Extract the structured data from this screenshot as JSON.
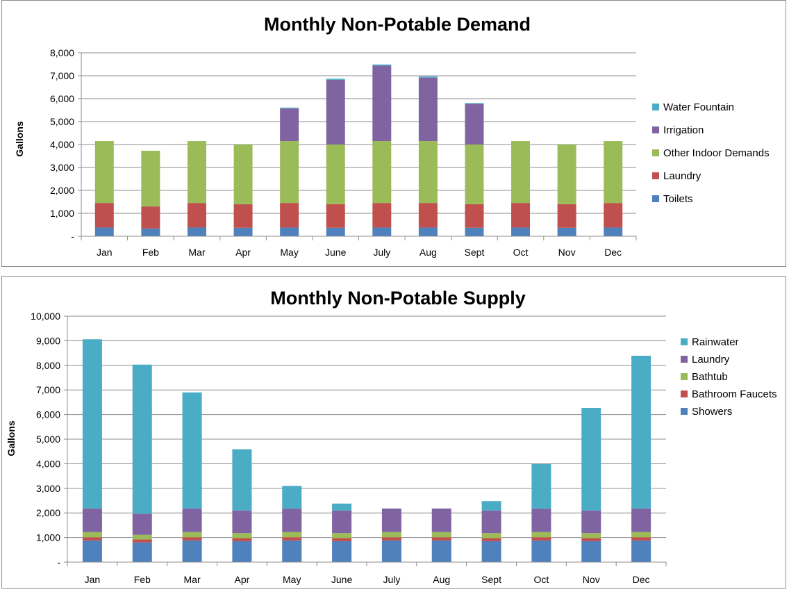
{
  "chart_data": [
    {
      "type": "bar",
      "stacked": true,
      "title": "Monthly Non-Potable Demand",
      "xlabel": "",
      "ylabel": "Gallons",
      "ylim": [
        0,
        8000
      ],
      "ytick_step": 1000,
      "ytick_labels": [
        "-",
        "1,000",
        "2,000",
        "3,000",
        "4,000",
        "5,000",
        "6,000",
        "7,000",
        "8,000"
      ],
      "grid": true,
      "legend_position": "right",
      "categories": [
        "Jan",
        "Feb",
        "Mar",
        "Apr",
        "May",
        "June",
        "July",
        "Aug",
        "Sept",
        "Oct",
        "Nov",
        "Dec"
      ],
      "series": [
        {
          "name": "Toilets",
          "color": "#4f81bd",
          "values": [
            380,
            340,
            380,
            370,
            380,
            370,
            380,
            380,
            370,
            380,
            370,
            380
          ]
        },
        {
          "name": "Laundry",
          "color": "#c0504d",
          "values": [
            1070,
            960,
            1070,
            1030,
            1070,
            1030,
            1070,
            1070,
            1030,
            1070,
            1030,
            1070
          ]
        },
        {
          "name": "Other Indoor Demands",
          "color": "#9bbb59",
          "values": [
            2700,
            2430,
            2700,
            2600,
            2700,
            2600,
            2700,
            2700,
            2600,
            2700,
            2600,
            2700
          ]
        },
        {
          "name": "Irrigation",
          "color": "#8064a2",
          "values": [
            0,
            0,
            0,
            0,
            1420,
            2820,
            3290,
            2770,
            1770,
            0,
            0,
            0
          ]
        },
        {
          "name": "Water Fountain",
          "color": "#4bacc6",
          "values": [
            0,
            0,
            0,
            0,
            40,
            50,
            50,
            50,
            40,
            0,
            0,
            0
          ]
        }
      ],
      "legend_order": [
        "Water Fountain",
        "Irrigation",
        "Other Indoor Demands",
        "Laundry",
        "Toilets"
      ]
    },
    {
      "type": "bar",
      "stacked": true,
      "title": "Monthly Non-Potable Supply",
      "xlabel": "",
      "ylabel": "Gallons",
      "ylim": [
        0,
        10000
      ],
      "ytick_step": 1000,
      "ytick_labels": [
        "-",
        "1,000",
        "2,000",
        "3,000",
        "4,000",
        "5,000",
        "6,000",
        "7,000",
        "8,000",
        "9,000",
        "10,000"
      ],
      "grid": true,
      "legend_position": "right",
      "categories": [
        "Jan",
        "Feb",
        "Mar",
        "Apr",
        "May",
        "June",
        "July",
        "Aug",
        "Sept",
        "Oct",
        "Nov",
        "Dec"
      ],
      "series": [
        {
          "name": "Showers",
          "color": "#4f81bd",
          "values": [
            880,
            800,
            880,
            850,
            880,
            850,
            880,
            880,
            850,
            880,
            850,
            880
          ]
        },
        {
          "name": "Bathroom Faucets",
          "color": "#c0504d",
          "values": [
            130,
            120,
            130,
            125,
            130,
            125,
            130,
            130,
            125,
            130,
            125,
            130
          ]
        },
        {
          "name": "Bathtub",
          "color": "#9bbb59",
          "values": [
            210,
            190,
            210,
            205,
            210,
            205,
            210,
            210,
            205,
            210,
            205,
            210
          ]
        },
        {
          "name": "Laundry",
          "color": "#8064a2",
          "values": [
            960,
            860,
            960,
            920,
            960,
            920,
            960,
            960,
            920,
            960,
            920,
            960
          ]
        },
        {
          "name": "Rainwater",
          "color": "#4bacc6",
          "values": [
            6880,
            6060,
            4720,
            2490,
            920,
            280,
            0,
            0,
            380,
            1810,
            4170,
            6210
          ]
        }
      ],
      "legend_order": [
        "Rainwater",
        "Laundry",
        "Bathtub",
        "Bathroom Faucets",
        "Showers"
      ]
    }
  ]
}
